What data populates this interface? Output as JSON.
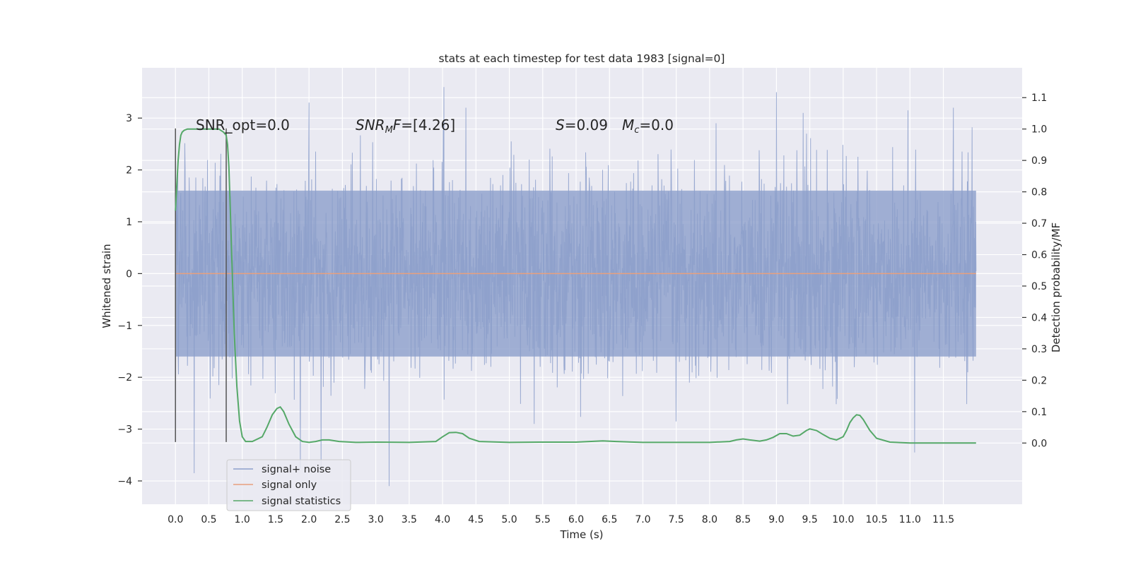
{
  "chart_data": {
    "type": "line",
    "title": "stats at each timestep for test data 1983 [signal=0]",
    "xlabel": "Time (s)",
    "ylabel": "Whitened strain",
    "y2label": "Detection probability/MF",
    "xlim": [
      -0.5,
      12.68
    ],
    "ylim": [
      -4.45,
      3.97
    ],
    "y2lim": [
      -0.195,
      1.195
    ],
    "xticks": [
      0.0,
      0.5,
      1.0,
      1.5,
      2.0,
      2.5,
      3.0,
      3.5,
      4.0,
      4.5,
      5.0,
      5.5,
      6.0,
      6.5,
      7.0,
      7.5,
      8.0,
      8.5,
      9.0,
      9.5,
      10.0,
      10.5,
      11.0,
      11.5
    ],
    "xtick_labels": [
      "0.0",
      "0.5",
      "1.0",
      "1.5",
      "2.0",
      "2.5",
      "3.0",
      "3.5",
      "4.0",
      "4.5",
      "5.0",
      "5.5",
      "6.0",
      "6.5",
      "7.0",
      "7.5",
      "8.0",
      "8.5",
      "9.0",
      "9.5",
      "10.0",
      "10.5",
      "11.0",
      "11.5"
    ],
    "yticks": [
      -4,
      -3,
      -2,
      -1,
      0,
      1,
      2,
      3
    ],
    "ytick_labels": [
      "−4",
      "−3",
      "−2",
      "−1",
      "0",
      "1",
      "2",
      "3"
    ],
    "y2ticks": [
      0.0,
      0.1,
      0.2,
      0.3,
      0.4,
      0.5,
      0.6,
      0.7,
      0.8,
      0.9,
      1.0,
      1.1
    ],
    "y2tick_labels": [
      "0.0",
      "0.1",
      "0.2",
      "0.3",
      "0.4",
      "0.5",
      "0.6",
      "0.7",
      "0.8",
      "0.9",
      "1.0",
      "1.1"
    ],
    "grid": true,
    "legend_position": "bottom-left",
    "annotations": {
      "snr_opt": "SNR_opt=0.0",
      "snr_mf_sym": "SNR",
      "snr_mf_sub": "M",
      "snr_mf_f": "F",
      "snr_mf_val": "=[4.26]",
      "s_sym": "S",
      "s_val": "=0.09",
      "mc_sym": "M",
      "mc_sub": "c",
      "mc_val": "=0.0"
    },
    "vertical_markers": [
      0.0,
      0.76
    ],
    "series": [
      {
        "name": "signal+ noise",
        "axis": "left",
        "color": "#8c9fcb",
        "style": "noise",
        "x_range": [
          0.0,
          11.99
        ],
        "typical_abs_max": 1.6,
        "extremes": [
          {
            "x": 0.0,
            "y": -3.25
          },
          {
            "x": 0.28,
            "y": -3.85
          },
          {
            "x": 1.87,
            "y": -3.75
          },
          {
            "x": 2.18,
            "y": -3.75
          },
          {
            "x": 3.2,
            "y": -4.1
          },
          {
            "x": 11.07,
            "y": -3.45
          },
          {
            "x": 2.0,
            "y": 3.3
          },
          {
            "x": 4.02,
            "y": 3.6
          },
          {
            "x": 4.35,
            "y": 3.2
          },
          {
            "x": 9.0,
            "y": 3.5
          },
          {
            "x": 9.4,
            "y": 3.1
          },
          {
            "x": 10.97,
            "y": 3.15
          },
          {
            "x": 11.65,
            "y": 3.2
          }
        ]
      },
      {
        "name": "signal only",
        "axis": "left",
        "color": "#e8a07e",
        "x": [
          0.0,
          11.99
        ],
        "y": [
          0.0,
          0.0
        ]
      },
      {
        "name": "signal statistics",
        "axis": "right",
        "color": "#55a868",
        "x": [
          0.0,
          0.02,
          0.04,
          0.06,
          0.08,
          0.1,
          0.13,
          0.18,
          0.3,
          0.5,
          0.65,
          0.72,
          0.76,
          0.78,
          0.8,
          0.82,
          0.85,
          0.88,
          0.92,
          0.96,
          1.0,
          1.05,
          1.15,
          1.3,
          1.37,
          1.45,
          1.52,
          1.57,
          1.62,
          1.7,
          1.8,
          1.9,
          2.0,
          2.1,
          2.2,
          2.3,
          2.45,
          2.7,
          3.0,
          3.5,
          3.9,
          4.0,
          4.1,
          4.2,
          4.3,
          4.4,
          4.55,
          5.0,
          5.5,
          6.0,
          6.4,
          6.6,
          7.0,
          7.5,
          8.0,
          8.3,
          8.4,
          8.5,
          8.6,
          8.75,
          8.85,
          8.95,
          9.05,
          9.15,
          9.25,
          9.35,
          9.45,
          9.5,
          9.6,
          9.7,
          9.8,
          9.9,
          10.0,
          10.05,
          10.1,
          10.15,
          10.2,
          10.25,
          10.3,
          10.4,
          10.5,
          10.7,
          11.0,
          11.99
        ],
        "y": [
          0.74,
          0.82,
          0.9,
          0.95,
          0.98,
          0.99,
          0.996,
          1.0,
          1.0,
          1.0,
          1.0,
          0.99,
          0.98,
          0.95,
          0.88,
          0.75,
          0.55,
          0.35,
          0.18,
          0.07,
          0.02,
          0.005,
          0.005,
          0.02,
          0.05,
          0.09,
          0.11,
          0.115,
          0.1,
          0.06,
          0.02,
          0.005,
          0.002,
          0.005,
          0.01,
          0.01,
          0.005,
          0.002,
          0.003,
          0.002,
          0.005,
          0.02,
          0.033,
          0.034,
          0.03,
          0.015,
          0.005,
          0.002,
          0.003,
          0.003,
          0.007,
          0.005,
          0.002,
          0.002,
          0.002,
          0.005,
          0.01,
          0.013,
          0.01,
          0.006,
          0.01,
          0.018,
          0.03,
          0.03,
          0.022,
          0.025,
          0.04,
          0.045,
          0.04,
          0.027,
          0.015,
          0.01,
          0.02,
          0.04,
          0.065,
          0.08,
          0.09,
          0.088,
          0.075,
          0.04,
          0.015,
          0.003,
          0.0,
          0.0
        ]
      }
    ]
  }
}
